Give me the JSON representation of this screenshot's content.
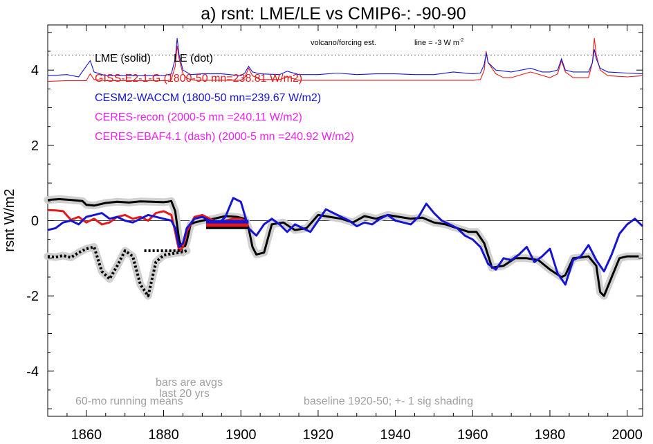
{
  "chart_data": {
    "type": "line",
    "title": "a) rsnt: LME/LE vs CMIP6-: -90-90",
    "ylabel": "rsnt W/m2",
    "xlabel": "",
    "xlim": [
      1850,
      2004
    ],
    "ylim": [
      -5.2,
      5.2
    ],
    "x_ticks": [
      1860,
      1880,
      1900,
      1920,
      1940,
      1960,
      1980,
      2000
    ],
    "y_ticks": [
      4,
      2,
      0,
      -2,
      -4
    ],
    "legend": [
      {
        "text": "LME (solid)",
        "color": "#000000"
      },
      {
        "text": "LE (dot)",
        "color": "#000000"
      },
      {
        "text": "GISS-E2-1-G (1800-50 mn=238.81 W/m2)",
        "color": "#e41a1a"
      },
      {
        "text": "CESM2-WACCM (1800-50 mn=239.67 W/m2)",
        "color": "#1414d2"
      },
      {
        "text": "CERES-recon (2000-5 mn =240.11 W/m2)",
        "color": "#ee22ee"
      },
      {
        "text": "CERES-EBAF4.1 (dash) (2000-5 mn =240.92 W/m2)",
        "color": "#ee22ee"
      }
    ],
    "annotations": {
      "volcano": "volcano/forcing est.",
      "line_note": "line = -3 W m",
      "line_note_sup": "-2",
      "bars_note_1": "bars are avgs",
      "bars_note_2": "last 20 yrs",
      "running_mean": "60-mo running means",
      "baseline": "baseline 1920-50; +- 1 sig shading"
    },
    "reference_line_y": 4.4,
    "series": [
      {
        "name": "LME (solid)",
        "color": "#000000",
        "style": "solid",
        "x": [
          1850,
          1853,
          1856,
          1859,
          1860,
          1862,
          1865,
          1868,
          1871,
          1874,
          1877,
          1880,
          1881,
          1882,
          1883,
          1884,
          1885,
          1886,
          1887,
          1888,
          1890,
          1893,
          1896,
          1899,
          1901,
          1902,
          1903,
          1904,
          1906,
          1908,
          1911,
          1914,
          1917,
          1920,
          1923,
          1926,
          1929,
          1932,
          1935,
          1938,
          1941,
          1944,
          1947,
          1950,
          1953,
          1956,
          1959,
          1961,
          1963,
          1965,
          1968,
          1971,
          1974,
          1977,
          1980,
          1983,
          1984,
          1986,
          1988,
          1990,
          1992,
          1993,
          1994,
          1996,
          1998,
          2000,
          2003
        ],
        "y": [
          0.55,
          0.57,
          0.55,
          0.52,
          0.42,
          0.4,
          0.47,
          0.5,
          0.48,
          0.51,
          0.5,
          0.49,
          0.5,
          0.52,
          0.25,
          -0.5,
          -0.85,
          -0.55,
          -0.1,
          -0.05,
          0.0,
          0.05,
          0.12,
          0.1,
          0.05,
          -0.2,
          -0.7,
          -0.9,
          -0.85,
          -0.1,
          -0.05,
          -0.25,
          -0.2,
          0.15,
          0.1,
          0.05,
          -0.05,
          0.12,
          0.05,
          0.15,
          0.1,
          0.05,
          0.08,
          -0.05,
          -0.1,
          -0.2,
          -0.3,
          -0.3,
          -0.6,
          -1.25,
          -1.2,
          -1.0,
          -1.0,
          -1.05,
          -1.3,
          -1.5,
          -1.45,
          -1.0,
          -0.98,
          -0.95,
          -1.2,
          -1.9,
          -2.0,
          -1.5,
          -1.0,
          -0.95,
          -0.95
        ]
      },
      {
        "name": "LE (dot)",
        "color": "#000000",
        "style": "dot",
        "x": [
          1850,
          1852,
          1854,
          1856,
          1858,
          1860,
          1862,
          1864,
          1866,
          1868,
          1870,
          1872,
          1874,
          1876,
          1878,
          1880,
          1882,
          1884,
          1886
        ],
        "y": [
          -0.95,
          -0.97,
          -0.93,
          -0.98,
          -0.85,
          -0.75,
          -0.7,
          -1.35,
          -1.55,
          -1.2,
          -0.8,
          -0.95,
          -1.7,
          -2.0,
          -1.1,
          -0.92,
          -0.88,
          -0.85,
          -0.8
        ]
      },
      {
        "name": "GISS-E2-1-G",
        "color": "#e41a1a",
        "style": "solid",
        "x": [
          1850,
          1852,
          1854,
          1856,
          1858,
          1860,
          1862,
          1864,
          1866,
          1868,
          1870,
          1872,
          1874,
          1876,
          1878,
          1880,
          1882,
          1883,
          1884,
          1885,
          1886,
          1888,
          1890,
          1892,
          1894,
          1896,
          1898,
          1900,
          1901
        ],
        "y": [
          0.28,
          0.27,
          0.25,
          0.02,
          0.1,
          -0.05,
          0.05,
          -0.1,
          -0.05,
          0.1,
          0.15,
          0.05,
          0.1,
          0.0,
          0.2,
          0.25,
          0.15,
          -0.3,
          -0.8,
          -0.7,
          -0.3,
          0.1,
          0.15,
          0.05,
          -0.05,
          0.0,
          0.05,
          0.05,
          0.0
        ]
      },
      {
        "name": "CESM2-WACCM",
        "color": "#1414d2",
        "style": "solid",
        "x": [
          1850,
          1852,
          1854,
          1856,
          1858,
          1860,
          1862,
          1864,
          1866,
          1868,
          1870,
          1872,
          1874,
          1876,
          1878,
          1880,
          1882,
          1883,
          1884,
          1885,
          1886,
          1888,
          1890,
          1892,
          1894,
          1896,
          1898,
          1900,
          1902,
          1904,
          1906,
          1908,
          1910,
          1912,
          1914,
          1916,
          1918,
          1920,
          1922,
          1924,
          1926,
          1928,
          1930,
          1932,
          1934,
          1936,
          1938,
          1940,
          1942,
          1944,
          1946,
          1948,
          1950,
          1952,
          1954,
          1956,
          1958,
          1960,
          1962,
          1964,
          1966,
          1968,
          1970,
          1972,
          1974,
          1976,
          1978,
          1980,
          1982,
          1984,
          1986,
          1988,
          1990,
          1992,
          1994,
          1996,
          1998,
          2000,
          2002,
          2004
        ],
        "y": [
          -0.25,
          -0.2,
          -0.05,
          0.0,
          -0.1,
          0.1,
          0.15,
          0.2,
          0.05,
          0.1,
          0.0,
          -0.05,
          0.05,
          0.15,
          0.1,
          0.05,
          0.0,
          -0.2,
          -0.7,
          -0.6,
          -0.2,
          0.05,
          0.1,
          0.0,
          -0.1,
          0.1,
          0.6,
          0.5,
          -0.2,
          -0.4,
          -0.1,
          0.05,
          -0.1,
          -0.3,
          -0.1,
          -0.2,
          -0.3,
          0.0,
          0.3,
          0.2,
          0.1,
          0.0,
          -0.15,
          -0.05,
          -0.1,
          0.05,
          0.15,
          0.0,
          -0.05,
          -0.1,
          0.1,
          0.45,
          0.2,
          0.0,
          -0.1,
          -0.2,
          -0.4,
          -0.5,
          -0.7,
          -1.15,
          -1.3,
          -1.0,
          -1.05,
          -0.9,
          -0.7,
          -1.1,
          -0.95,
          -0.75,
          -1.4,
          -1.7,
          -1.05,
          -0.95,
          -0.65,
          -1.05,
          -1.35,
          -0.9,
          -0.35,
          -0.1,
          0.05,
          -0.15
        ]
      }
    ],
    "bars": [
      {
        "name": "LME",
        "color": "#000000",
        "x": [
          1891,
          1902
        ],
        "y": -0.18
      },
      {
        "name": "GISS-E2-1-G",
        "color": "#e41a1a",
        "x": [
          1891,
          1902
        ],
        "y": -0.12
      },
      {
        "name": "CESM2-WACCM",
        "color": "#1414d2",
        "x": [
          1891,
          1902
        ],
        "y": -0.03
      },
      {
        "name": "LE",
        "color": "#000000",
        "x": [
          1875,
          1885
        ],
        "y": -0.8
      }
    ],
    "forcing": [
      {
        "name": "GISS-E2-1-G forcing",
        "color": "#e41a1a",
        "x": [
          1850,
          1855,
          1860,
          1861,
          1862,
          1865,
          1870,
          1875,
          1880,
          1881,
          1882,
          1883,
          1883.5,
          1884,
          1885,
          1886,
          1888,
          1890,
          1895,
          1900,
          1901,
          1902,
          1903,
          1905,
          1910,
          1912,
          1915,
          1920,
          1930,
          1940,
          1950,
          1960,
          1962,
          1963,
          1963.5,
          1964,
          1966,
          1968,
          1970,
          1975,
          1980,
          1982,
          1983,
          1984,
          1986,
          1990,
          1991,
          1991.5,
          1992,
          1993,
          1995,
          2000,
          2004
        ],
        "y": [
          3.7,
          3.72,
          3.72,
          3.9,
          3.75,
          3.72,
          3.72,
          3.72,
          3.72,
          3.72,
          3.75,
          4.1,
          4.65,
          4.3,
          3.9,
          3.78,
          3.73,
          3.73,
          3.73,
          3.73,
          3.8,
          4.05,
          3.85,
          3.75,
          3.75,
          3.82,
          3.73,
          3.73,
          3.73,
          3.73,
          3.73,
          3.73,
          3.75,
          4.0,
          4.5,
          4.2,
          3.9,
          3.8,
          3.8,
          3.95,
          3.8,
          3.9,
          4.25,
          3.95,
          3.8,
          3.8,
          4.2,
          4.85,
          4.4,
          4.0,
          3.85,
          3.82,
          3.85
        ]
      },
      {
        "name": "CESM2-WACCM forcing",
        "color": "#1414d2",
        "x": [
          1850,
          1855,
          1858,
          1861,
          1862,
          1865,
          1870,
          1875,
          1880,
          1882,
          1883,
          1883.5,
          1884,
          1885,
          1887,
          1890,
          1895,
          1900,
          1901,
          1902,
          1903,
          1905,
          1910,
          1912,
          1915,
          1920,
          1925,
          1930,
          1935,
          1940,
          1945,
          1950,
          1955,
          1960,
          1962,
          1963,
          1963.5,
          1964,
          1966,
          1970,
          1975,
          1978,
          1980,
          1982,
          1983,
          1984,
          1986,
          1990,
          1991,
          1991.5,
          1992,
          1993,
          1995,
          2000,
          2004
        ],
        "y": [
          3.85,
          3.88,
          3.82,
          4.25,
          3.95,
          3.85,
          3.85,
          3.85,
          3.85,
          3.9,
          4.3,
          4.85,
          4.4,
          4.0,
          3.88,
          3.9,
          3.9,
          3.85,
          3.92,
          4.1,
          3.95,
          3.9,
          3.88,
          3.97,
          3.88,
          3.88,
          3.92,
          3.88,
          3.9,
          3.9,
          3.88,
          3.88,
          3.95,
          3.9,
          3.92,
          4.15,
          4.45,
          4.2,
          4.0,
          3.95,
          4.05,
          3.95,
          3.95,
          4.0,
          4.3,
          4.0,
          3.95,
          3.95,
          4.2,
          4.55,
          4.3,
          4.05,
          3.95,
          3.92,
          3.9
        ]
      }
    ]
  }
}
